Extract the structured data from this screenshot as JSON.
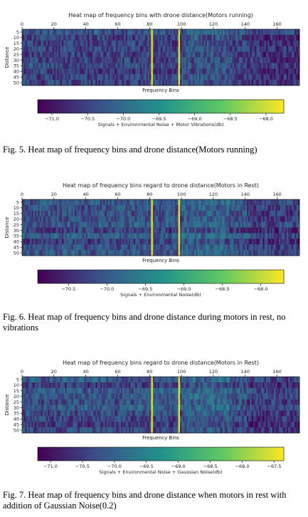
{
  "figures": [
    {
      "caption": "Fig. 5.  Heat map of frequency bins and drone distance(Motors running)"
    },
    {
      "caption": "Fig. 6.  Heat map of frequency bins and drone distance during motors in rest, no vibrations"
    },
    {
      "caption": "Fig. 7.  Heat map of frequency bins and drone distance when motors in rest with addition of Gaussian Noise(0.2)"
    }
  ],
  "chart_data": [
    {
      "type": "heatmap",
      "title": "Heat map of frequency bins with drone distance(Motors running)",
      "xlabel": "Frequency Bins",
      "ylabel": "Distance",
      "x_ticks": [
        0,
        20,
        40,
        60,
        80,
        100,
        120,
        140,
        160
      ],
      "x_range": [
        0,
        174
      ],
      "y_categories": [
        "5",
        "10",
        "15",
        "20",
        "25",
        "30",
        "35",
        "40",
        "45",
        "50"
      ],
      "highlight_bins": [
        81,
        98
      ],
      "colorbar": {
        "label": "Signals + Environmental Noise + Motor Vibrations(db)",
        "ticks": [
          "−71.0",
          "−70.5",
          "−70.0",
          "−69.5",
          "−69.0",
          "−68.5",
          "−68.0"
        ],
        "tick_values": [
          -71.0,
          -70.5,
          -70.0,
          -69.5,
          -69.0,
          -68.5,
          -68.0
        ],
        "range": [
          -71.2,
          -67.75
        ]
      },
      "colors": [
        "#440154",
        "#3b528b",
        "#21918c",
        "#5ec962",
        "#fde725"
      ]
    },
    {
      "type": "heatmap",
      "title": "Heat map of frequency bins regard to drone distance(Motors in Rest)",
      "xlabel": "Frequency Bins",
      "ylabel": "Distance",
      "x_ticks": [
        0,
        20,
        40,
        60,
        80,
        100,
        120,
        140,
        160
      ],
      "x_range": [
        0,
        174
      ],
      "y_categories": [
        "5",
        "10",
        "15",
        "20",
        "25",
        "30",
        "35",
        "40",
        "45",
        "50"
      ],
      "highlight_bins": [
        81,
        98
      ],
      "colorbar": {
        "label": "Signals + Environmental Noise(db)",
        "ticks": [
          "−70.5",
          "−70.0",
          "−69.5",
          "−69.0",
          "−68.5",
          "−68.0"
        ],
        "tick_values": [
          -70.5,
          -70.0,
          -69.5,
          -69.0,
          -68.5,
          -68.0
        ],
        "range": [
          -70.9,
          -67.7
        ]
      },
      "colors": [
        "#440154",
        "#3b528b",
        "#21918c",
        "#5ec962",
        "#fde725"
      ]
    },
    {
      "type": "heatmap",
      "title": "Heat map of frequency bins regard to drone distance(Motors in Rest)",
      "xlabel": "Frequency Bins",
      "ylabel": "Distance",
      "x_ticks": [
        0,
        20,
        40,
        60,
        80,
        100,
        120,
        140,
        160
      ],
      "x_range": [
        0,
        174
      ],
      "y_categories": [
        "5",
        "10",
        "15",
        "20",
        "25",
        "30",
        "35",
        "40",
        "45",
        "50"
      ],
      "highlight_bins": [
        81,
        98
      ],
      "colorbar": {
        "label": "Signals + Environmental Noise + Gaussian Noise(db)",
        "ticks": [
          "−71.0",
          "−70.5",
          "−70.0",
          "−69.5",
          "−69.0",
          "−68.5",
          "−68.0",
          "−67.5"
        ],
        "tick_values": [
          -71.0,
          -70.5,
          -70.0,
          -69.5,
          -69.0,
          -68.5,
          -68.0,
          -67.5
        ],
        "range": [
          -71.2,
          -67.35
        ]
      },
      "colors": [
        "#440154",
        "#3b528b",
        "#21918c",
        "#5ec962",
        "#fde725"
      ]
    }
  ]
}
